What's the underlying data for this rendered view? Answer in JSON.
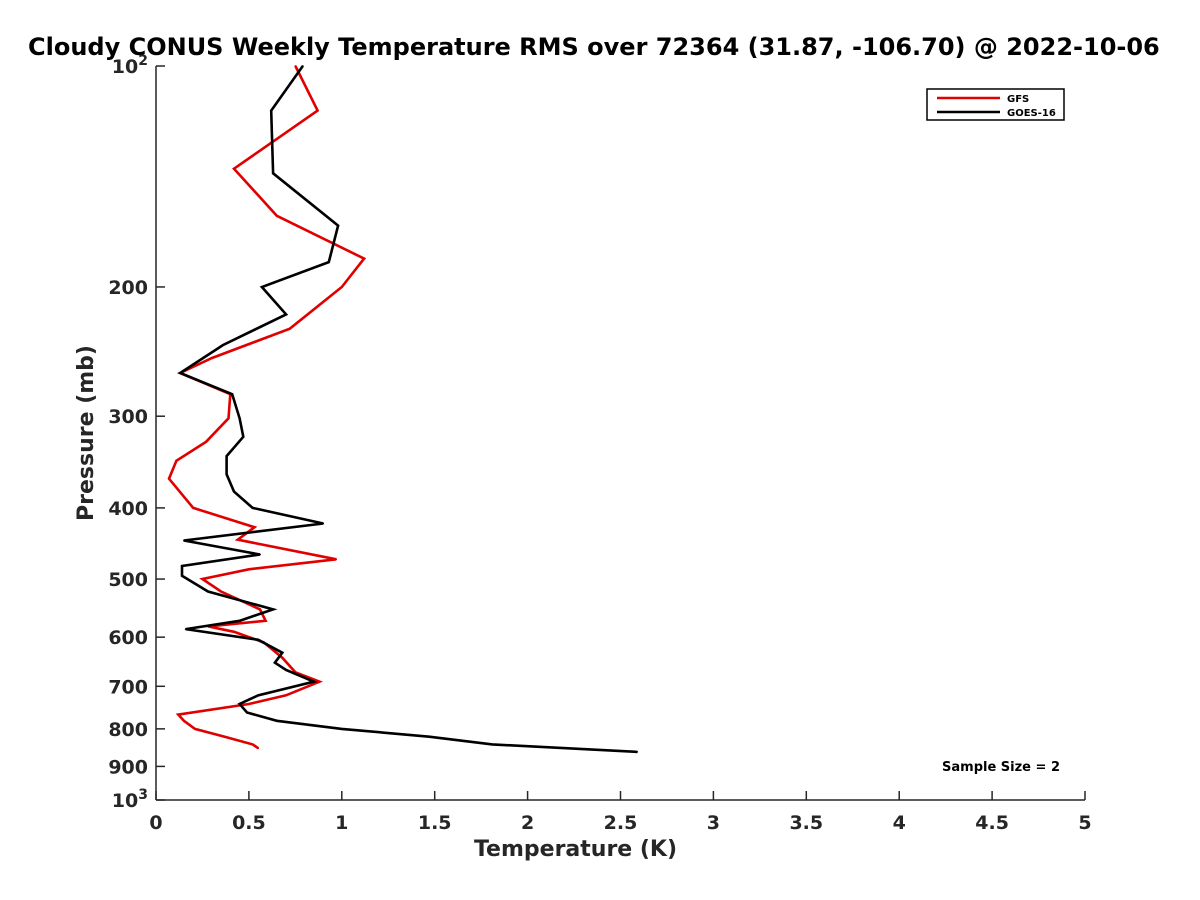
{
  "chart_data": {
    "type": "line",
    "title": "Cloudy CONUS Weekly Temperature RMS over 72364 (31.87, -106.70) @ 2022-10-06",
    "xlabel": "Temperature (K)",
    "ylabel": "Pressure (mb)",
    "xlim": [
      0,
      5
    ],
    "ylim": [
      1000,
      100
    ],
    "y_scale": "log",
    "y_reversed": true,
    "grid": false,
    "legend_position": "top-right",
    "x_ticks": [
      {
        "value": 0,
        "label": "0"
      },
      {
        "value": 0.5,
        "label": "0.5"
      },
      {
        "value": 1,
        "label": "1"
      },
      {
        "value": 1.5,
        "label": "1.5"
      },
      {
        "value": 2,
        "label": "2"
      },
      {
        "value": 2.5,
        "label": "2.5"
      },
      {
        "value": 3,
        "label": "3"
      },
      {
        "value": 3.5,
        "label": "3.5"
      },
      {
        "value": 4,
        "label": "4"
      },
      {
        "value": 4.5,
        "label": "4.5"
      },
      {
        "value": 5,
        "label": "5"
      }
    ],
    "y_ticks": [
      {
        "value": 100,
        "label": "10",
        "sup": "2"
      },
      {
        "value": 200,
        "label": "200",
        "sup": ""
      },
      {
        "value": 300,
        "label": "300",
        "sup": ""
      },
      {
        "value": 400,
        "label": "400",
        "sup": ""
      },
      {
        "value": 500,
        "label": "500",
        "sup": ""
      },
      {
        "value": 600,
        "label": "600",
        "sup": ""
      },
      {
        "value": 700,
        "label": "700",
        "sup": ""
      },
      {
        "value": 800,
        "label": "800",
        "sup": ""
      },
      {
        "value": 900,
        "label": "900",
        "sup": ""
      },
      {
        "value": 1000,
        "label": "10",
        "sup": "3"
      }
    ],
    "series": [
      {
        "name": "GFS",
        "color": "#e00000",
        "points": [
          [
            0.75,
            100
          ],
          [
            0.87,
            115
          ],
          [
            0.42,
            138
          ],
          [
            0.65,
            160
          ],
          [
            1.12,
            183
          ],
          [
            1.0,
            200
          ],
          [
            0.72,
            228
          ],
          [
            0.3,
            250
          ],
          [
            0.13,
            262
          ],
          [
            0.4,
            280
          ],
          [
            0.39,
            302
          ],
          [
            0.27,
            325
          ],
          [
            0.11,
            345
          ],
          [
            0.07,
            365
          ],
          [
            0.2,
            400
          ],
          [
            0.53,
            425
          ],
          [
            0.44,
            442
          ],
          [
            0.97,
            470
          ],
          [
            0.5,
            485
          ],
          [
            0.25,
            500
          ],
          [
            0.35,
            520
          ],
          [
            0.56,
            550
          ],
          [
            0.59,
            570
          ],
          [
            0.28,
            580
          ],
          [
            0.42,
            590
          ],
          [
            0.58,
            610
          ],
          [
            0.68,
            640
          ],
          [
            0.75,
            670
          ],
          [
            0.88,
            690
          ],
          [
            0.7,
            720
          ],
          [
            0.5,
            740
          ],
          [
            0.12,
            765
          ],
          [
            0.15,
            780
          ],
          [
            0.21,
            800
          ],
          [
            0.37,
            820
          ],
          [
            0.52,
            840
          ],
          [
            0.55,
            850
          ]
        ]
      },
      {
        "name": "GOES-16",
        "color": "#000000",
        "points": [
          [
            0.79,
            100
          ],
          [
            0.62,
            115
          ],
          [
            0.63,
            140
          ],
          [
            0.98,
            165
          ],
          [
            0.93,
            185
          ],
          [
            0.57,
            200
          ],
          [
            0.7,
            218
          ],
          [
            0.36,
            240
          ],
          [
            0.13,
            262
          ],
          [
            0.41,
            280
          ],
          [
            0.45,
            302
          ],
          [
            0.47,
            320
          ],
          [
            0.38,
            340
          ],
          [
            0.38,
            360
          ],
          [
            0.42,
            380
          ],
          [
            0.52,
            400
          ],
          [
            0.9,
            420
          ],
          [
            0.15,
            443
          ],
          [
            0.56,
            463
          ],
          [
            0.14,
            480
          ],
          [
            0.14,
            495
          ],
          [
            0.28,
            520
          ],
          [
            0.63,
            550
          ],
          [
            0.45,
            570
          ],
          [
            0.16,
            585
          ],
          [
            0.55,
            605
          ],
          [
            0.68,
            630
          ],
          [
            0.64,
            650
          ],
          [
            0.7,
            665
          ],
          [
            0.85,
            690
          ],
          [
            0.55,
            720
          ],
          [
            0.45,
            740
          ],
          [
            0.49,
            760
          ],
          [
            0.65,
            780
          ],
          [
            1.0,
            800
          ],
          [
            1.47,
            820
          ],
          [
            1.81,
            840
          ],
          [
            2.59,
            860
          ]
        ]
      }
    ],
    "legend": [
      "GFS",
      "GOES-16"
    ],
    "annotation": "Sample Size = 2"
  }
}
